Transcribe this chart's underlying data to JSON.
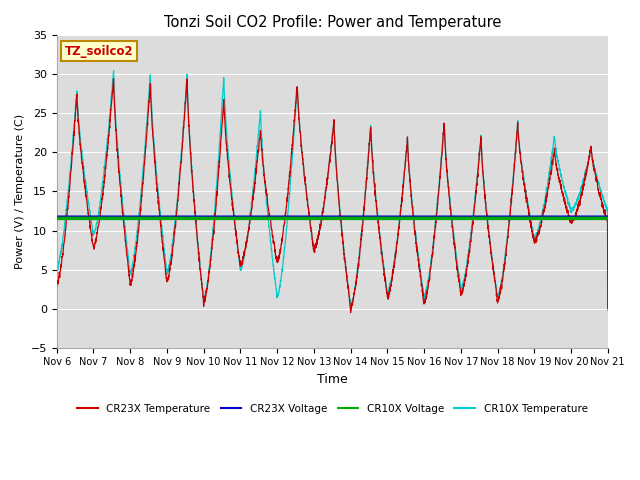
{
  "title": "Tonzi Soil CO2 Profile: Power and Temperature",
  "xlabel": "Time",
  "ylabel": "Power (V) / Temperature (C)",
  "ylim": [
    -5,
    35
  ],
  "xlim": [
    0,
    15
  ],
  "yticks": [
    -5,
    0,
    5,
    10,
    15,
    20,
    25,
    30,
    35
  ],
  "xtick_labels": [
    "Nov 6",
    "Nov 7",
    "Nov 8",
    "Nov 9",
    "Nov 10",
    "Nov 11",
    "Nov 12",
    "Nov 13",
    "Nov 14",
    "Nov 15",
    "Nov 16",
    "Nov 17",
    "Nov 18",
    "Nov 19",
    "Nov 20",
    "Nov 21"
  ],
  "voltage_cr23x": 11.75,
  "voltage_cr10x": 11.55,
  "background_color": "#e8e8e8",
  "plot_bg_color": "#dcdcdc",
  "legend_label_box": "TZ_soilco2",
  "legend_box_color": "#ffffcc",
  "legend_box_edge": "#bb8800",
  "cr23x_temp_color": "#cc0000",
  "cr10x_temp_color": "#00cccc",
  "cr23x_volt_color": "#0000cc",
  "cr10x_volt_color": "#00aa00",
  "peaks_cr10x": [
    28.0,
    30.5,
    30.2,
    30.0,
    29.8,
    25.5,
    28.9,
    24.2,
    23.8,
    22.0,
    24.0,
    22.2,
    24.0,
    22.1,
    20.6
  ],
  "mins_cr10x": [
    5.0,
    9.5,
    4.5,
    4.5,
    1.0,
    5.0,
    1.5,
    7.5,
    0.3,
    2.0,
    1.5,
    2.5,
    1.5,
    9.0,
    12.5
  ],
  "peaks_cr23x": [
    27.5,
    29.5,
    29.0,
    29.5,
    26.8,
    23.0,
    28.8,
    24.0,
    23.5,
    21.8,
    23.8,
    22.0,
    23.7,
    20.5,
    20.8
  ],
  "mins_cr23x": [
    3.0,
    7.8,
    3.2,
    3.5,
    0.8,
    5.5,
    6.0,
    7.5,
    0.0,
    1.5,
    0.8,
    1.8,
    1.0,
    8.5,
    11.0
  ]
}
